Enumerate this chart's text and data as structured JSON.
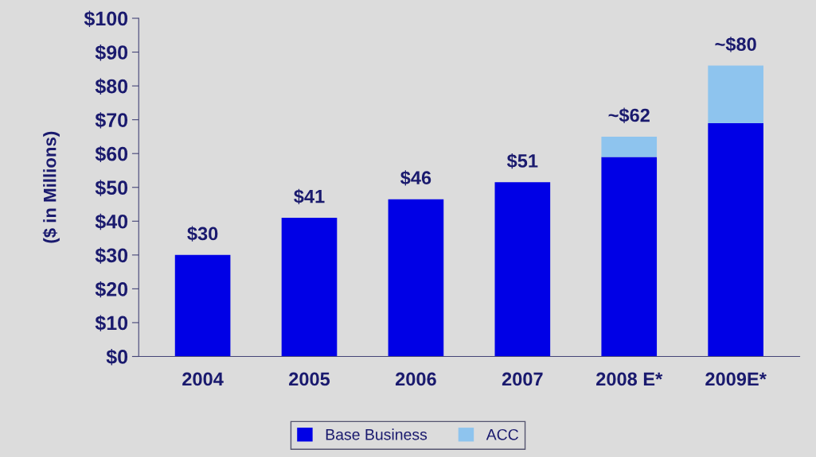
{
  "chart_data": {
    "type": "bar",
    "stacked": true,
    "ylabel": "($ in Millions)",
    "categories": [
      "2004",
      "2005",
      "2006",
      "2007",
      "2008 E*",
      "2009E*"
    ],
    "series": [
      {
        "name": "Base Business",
        "color": "#0000e6",
        "values": [
          30,
          41,
          46.5,
          51.5,
          59,
          69
        ]
      },
      {
        "name": "ACC",
        "color": "#8ec4ee",
        "values": [
          null,
          null,
          null,
          null,
          6,
          17
        ]
      }
    ],
    "annotations": [
      {
        "text": "$30",
        "x": "2004",
        "y": 30
      },
      {
        "text": "$41",
        "x": "2005",
        "y": 41
      },
      {
        "text": "$46",
        "x": "2006",
        "y": 46.5
      },
      {
        "text": "$51",
        "x": "2007",
        "y": 51.5
      },
      {
        "text": "~$62",
        "x": "2008 E*",
        "y": 65
      },
      {
        "text": "~$80",
        "x": "2009E*",
        "y": 86
      }
    ],
    "ylim": [
      0,
      100
    ],
    "yticks": [
      {
        "value": 0,
        "label": "$0"
      },
      {
        "value": 10,
        "label": "$10"
      },
      {
        "value": 20,
        "label": "$20"
      },
      {
        "value": 30,
        "label": "$30"
      },
      {
        "value": 40,
        "label": "$40"
      },
      {
        "value": 50,
        "label": "$50"
      },
      {
        "value": 60,
        "label": "$60"
      },
      {
        "value": 70,
        "label": "$70"
      },
      {
        "value": 80,
        "label": "$80"
      },
      {
        "value": 90,
        "label": "$90"
      },
      {
        "value": 100,
        "label": "$100"
      }
    ],
    "grid": false,
    "legend": "bottom"
  }
}
